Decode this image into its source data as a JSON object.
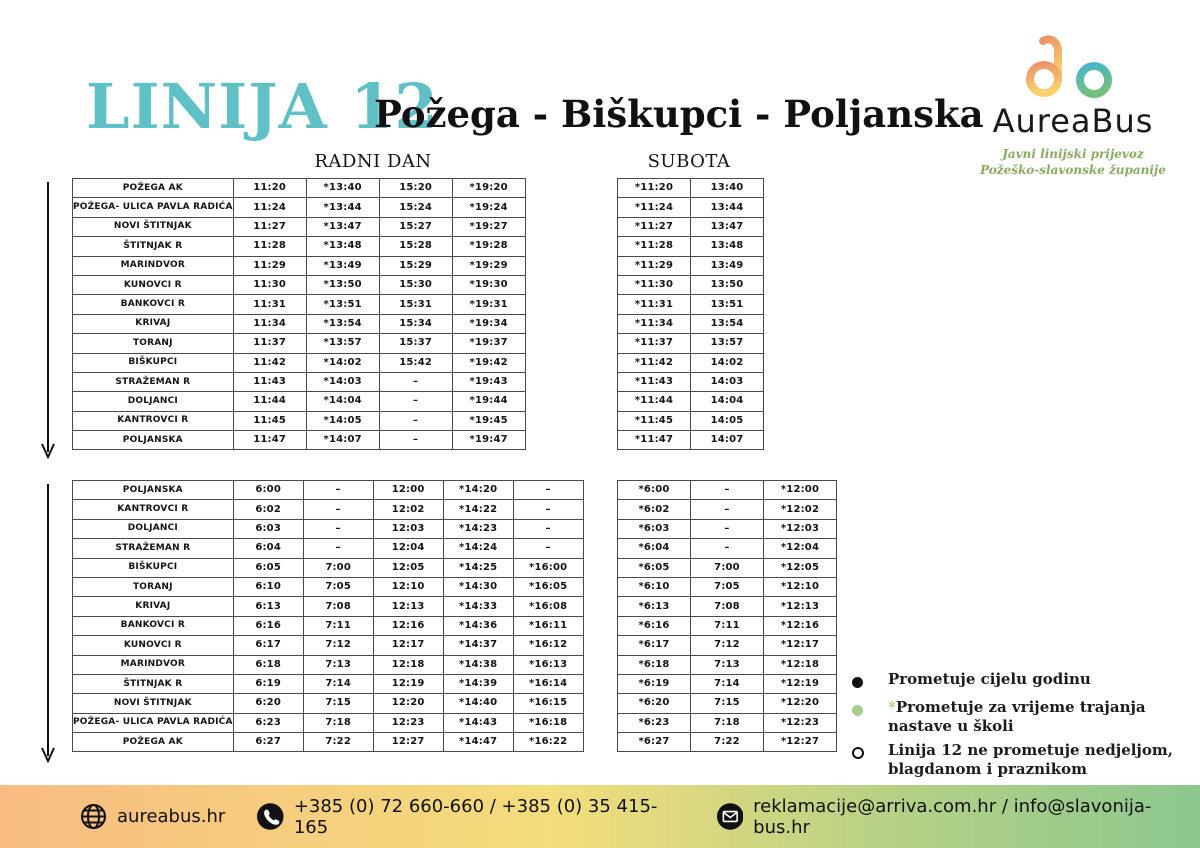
{
  "title": {
    "line": "LINIJA 12",
    "route": "Požega - Biškupci - Poljanska"
  },
  "logo": {
    "name": "AureaBus",
    "tagline1": "Javni linijski prijevoz",
    "tagline2": "Požeško-slavonske županije"
  },
  "section_headers": {
    "workday": "RADNI DAN",
    "saturday": "SUBOTA"
  },
  "colors": {
    "teal": "#5fc1c5",
    "time_green": "#a7ce8e",
    "tagline_green": "#87ac5f",
    "footer_gradient": [
      "#f8bc80",
      "#f3dd7c",
      "#8cc78f"
    ]
  },
  "direction1": {
    "stations": [
      "POŽEGA AK",
      "POŽEGA- ULICA PAVLA RADIĆA",
      "NOVI ŠTITNJAK",
      "ŠTITNJAK R",
      "MARINDVOR",
      "KUNOVCI R",
      "BANKOVCI R",
      "KRIVAJ",
      "TORANJ",
      "BIŠKUPCI",
      "STRAŽEMAN R",
      "DOLJANCI",
      "KANTROVCI R",
      "POLJANSKA"
    ],
    "workday_columns": [
      {
        "green": false,
        "values": [
          "11:20",
          "11:24",
          "11:27",
          "11:28",
          "11:29",
          "11:30",
          "11:31",
          "11:34",
          "11:37",
          "11:42",
          "11:43",
          "11:44",
          "11:45",
          "11:47"
        ]
      },
      {
        "green": true,
        "values": [
          "*13:40",
          "*13:44",
          "*13:47",
          "*13:48",
          "*13:49",
          "*13:50",
          "*13:51",
          "*13:54",
          "*13:57",
          "*14:02",
          "*14:03",
          "*14:04",
          "*14:05",
          "*14:07"
        ]
      },
      {
        "green": false,
        "values": [
          "15:20",
          "15:24",
          "15:27",
          "15:28",
          "15:29",
          "15:30",
          "15:31",
          "15:34",
          "15:37",
          "15:42",
          "–",
          "–",
          "–",
          "–"
        ]
      },
      {
        "green": true,
        "values": [
          "*19:20",
          "*19:24",
          "*19:27",
          "*19:28",
          "*19:29",
          "*19:30",
          "*19:31",
          "*19:34",
          "*19:37",
          "*19:42",
          "*19:43",
          "*19:44",
          "*19:45",
          "*19:47"
        ]
      }
    ],
    "saturday_columns": [
      {
        "green": true,
        "values": [
          "*11:20",
          "*11:24",
          "*11:27",
          "*11:28",
          "*11:29",
          "*11:30",
          "*11:31",
          "*11:34",
          "*11:37",
          "*11:42",
          "*11:43",
          "*11:44",
          "*11:45",
          "*11:47"
        ]
      },
      {
        "green": false,
        "values": [
          "13:40",
          "13:44",
          "13:47",
          "13:48",
          "13:49",
          "13:50",
          "13:51",
          "13:54",
          "13:57",
          "14:02",
          "14:03",
          "14:04",
          "14:05",
          "14:07"
        ]
      }
    ]
  },
  "direction2": {
    "stations": [
      "POLJANSKA",
      "KANTROVCI R",
      "DOLJANCI",
      "STRAŽEMAN R",
      "BIŠKUPCI",
      "TORANJ",
      "KRIVAJ",
      "BANKOVCI R",
      "KUNOVCI R",
      "MARINDVOR",
      "ŠTITNJAK R",
      "NOVI ŠTITNJAK",
      "POŽEGA- ULICA PAVLA RADIĆA",
      "POŽEGA AK"
    ],
    "workday_columns": [
      {
        "green": false,
        "values": [
          "6:00",
          "6:02",
          "6:03",
          "6:04",
          "6:05",
          "6:10",
          "6:13",
          "6:16",
          "6:17",
          "6:18",
          "6:19",
          "6:20",
          "6:23",
          "6:27"
        ]
      },
      {
        "green": false,
        "values": [
          "–",
          "–",
          "–",
          "–",
          "7:00",
          "7:05",
          "7:08",
          "7:11",
          "7:12",
          "7:13",
          "7:14",
          "7:15",
          "7:18",
          "7:22"
        ]
      },
      {
        "green": false,
        "values": [
          "12:00",
          "12:02",
          "12:03",
          "12:04",
          "12:05",
          "12:10",
          "12:13",
          "12:16",
          "12:17",
          "12:18",
          "12:19",
          "12:20",
          "12:23",
          "12:27"
        ]
      },
      {
        "green": true,
        "values": [
          "*14:20",
          "*14:22",
          "*14:23",
          "*14:24",
          "*14:25",
          "*14:30",
          "*14:33",
          "*14:36",
          "*14:37",
          "*14:38",
          "*14:39",
          "*14:40",
          "*14:43",
          "*14:47"
        ]
      },
      {
        "green": true,
        "values": [
          "–",
          "–",
          "–",
          "–",
          "*16:00",
          "*16:05",
          "*16:08",
          "*16:11",
          "*16:12",
          "*16:13",
          "*16:14",
          "*16:15",
          "*16:18",
          "*16:22"
        ]
      }
    ],
    "saturday_columns": [
      {
        "green": true,
        "values": [
          "*6:00",
          "*6:02",
          "*6:03",
          "*6:04",
          "*6:05",
          "*6:10",
          "*6:13",
          "*6:16",
          "*6:17",
          "*6:18",
          "*6:19",
          "*6:20",
          "*6:23",
          "*6:27"
        ]
      },
      {
        "green": false,
        "values": [
          "–",
          "–",
          "–",
          "–",
          "7:00",
          "7:05",
          "7:08",
          "7:11",
          "7:12",
          "7:13",
          "7:14",
          "7:15",
          "7:18",
          "7:22"
        ]
      },
      {
        "green": true,
        "values": [
          "*12:00",
          "*12:02",
          "*12:03",
          "*12:04",
          "*12:05",
          "*12:10",
          "*12:13",
          "*12:16",
          "*12:17",
          "*12:18",
          "*12:19",
          "*12:20",
          "*12:23",
          "*12:27"
        ]
      }
    ]
  },
  "legend": {
    "items": [
      {
        "marker": "filled-black",
        "prefix": "",
        "text": "Prometuje cijelu godinu"
      },
      {
        "marker": "filled-green",
        "prefix": "*",
        "text": "Prometuje za vrijeme trajanja nastave u školi"
      },
      {
        "marker": "open",
        "prefix": "",
        "text": "Linija 12 ne prometuje nedjeljom, blagdanom i praznikom"
      }
    ]
  },
  "footer": {
    "website": "aureabus.hr",
    "phones": "+385 (0) 72 660-660 / +385 (0) 35 415-165",
    "emails": "reklamacije@arriva.com.hr / info@slavonija-bus.hr"
  }
}
